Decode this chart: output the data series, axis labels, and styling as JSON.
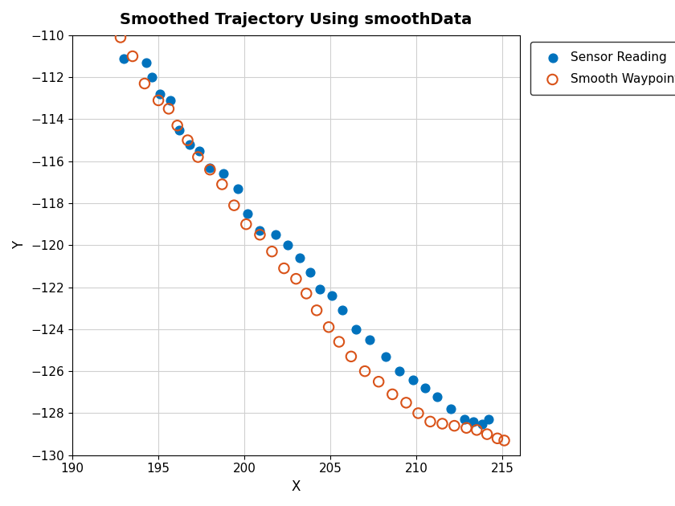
{
  "title": "Smoothed Trajectory Using smoothData",
  "xlabel": "X",
  "ylabel": "Y",
  "xlim": [
    190,
    216
  ],
  "ylim": [
    -130,
    -110
  ],
  "sensor_x": [
    193.0,
    194.3,
    194.6,
    195.1,
    195.7,
    196.2,
    196.8,
    197.4,
    198.0,
    198.8,
    199.6,
    200.2,
    200.9,
    201.8,
    202.5,
    203.2,
    203.8,
    204.4,
    205.1,
    205.7,
    206.5,
    207.3,
    208.2,
    209.0,
    209.8,
    210.5,
    211.2,
    212.0,
    212.8,
    213.3,
    213.8,
    214.2
  ],
  "sensor_y": [
    -111.1,
    -111.3,
    -112.0,
    -112.8,
    -113.1,
    -114.5,
    -115.2,
    -115.5,
    -116.3,
    -116.6,
    -117.3,
    -118.5,
    -119.3,
    -119.5,
    -120.0,
    -120.6,
    -121.3,
    -122.1,
    -122.4,
    -123.1,
    -124.0,
    -124.5,
    -125.3,
    -126.0,
    -126.4,
    -126.8,
    -127.2,
    -127.8,
    -128.3,
    -128.4,
    -128.5,
    -128.3
  ],
  "smooth_x": [
    192.8,
    193.5,
    194.2,
    195.0,
    195.6,
    196.1,
    196.7,
    197.3,
    198.0,
    198.7,
    199.4,
    200.1,
    200.9,
    201.6,
    202.3,
    203.0,
    203.6,
    204.2,
    204.9,
    205.5,
    206.2,
    207.0,
    207.8,
    208.6,
    209.4,
    210.1,
    210.8,
    211.5,
    212.2,
    212.9,
    213.5,
    214.1,
    214.7,
    215.1
  ],
  "smooth_y": [
    -110.1,
    -111.0,
    -112.3,
    -113.1,
    -113.5,
    -114.3,
    -115.0,
    -115.8,
    -116.4,
    -117.1,
    -118.1,
    -119.0,
    -119.5,
    -120.3,
    -121.1,
    -121.6,
    -122.3,
    -123.1,
    -123.9,
    -124.6,
    -125.3,
    -126.0,
    -126.5,
    -127.1,
    -127.5,
    -128.0,
    -128.4,
    -128.5,
    -128.6,
    -128.7,
    -128.8,
    -129.0,
    -129.2,
    -129.3
  ],
  "sensor_color": "#0072BD",
  "smooth_color": "#D95319",
  "sensor_label": "Sensor Reading",
  "smooth_label": "Smooth Waypoints",
  "title_fontsize": 14,
  "label_fontsize": 12,
  "tick_fontsize": 11,
  "grid_color": "#d0d0d0",
  "marker_size_sensor": 60,
  "marker_size_smooth": 80,
  "legend_fontsize": 11
}
